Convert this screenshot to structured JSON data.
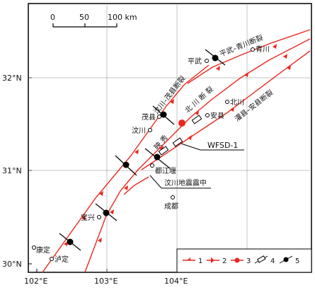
{
  "scale": {
    "ticks": [
      "0",
      "50",
      "100 km"
    ]
  },
  "axes": {
    "lat": [
      "32°N",
      "31°N",
      "30°N"
    ],
    "lon": [
      "102°E",
      "103°E",
      "104°E"
    ]
  },
  "faults": {
    "pingwu_qingchuan": "平武–青川断裂",
    "wenchuan_maoxian": "汶川–茂县断裂",
    "beichuan": "北 川 断 裂",
    "guanxian_anxian": "灌县–安县断裂",
    "yingxiu": "映 秀"
  },
  "places": {
    "qingchuan": "青川",
    "pingwu": "平武",
    "beichuan": "北川",
    "anxian": "安县",
    "maoxian": "茂县",
    "wenchuan": "汶川",
    "dujiangyan": "都江堰",
    "chengdu": "成都",
    "baoxing": "宝兴",
    "kangding": "康定",
    "luding": "泸定"
  },
  "annotations": {
    "wfsd": "WFSD-1",
    "epicenter": "汶川地震震中"
  },
  "legend": [
    "1",
    "2",
    "3",
    "4",
    "5"
  ],
  "colors": {
    "fault": "#e8281e",
    "epicenter": "#e8281e",
    "frame": "#000000"
  }
}
